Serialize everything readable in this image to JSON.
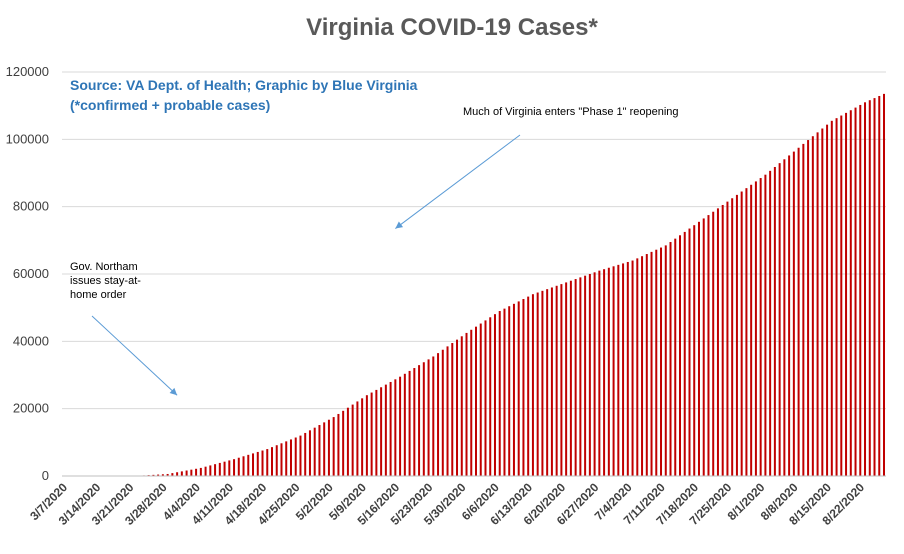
{
  "chart_data": {
    "type": "bar",
    "title": "Virginia COVID-19 Cases*",
    "source_lines": [
      "Source: VA Dept. of Health; Graphic by Blue Virginia",
      "(*confirmed + probable cases)"
    ],
    "ylim": [
      0,
      120000
    ],
    "y_ticks": [
      0,
      20000,
      40000,
      60000,
      80000,
      100000,
      120000
    ],
    "grid": true,
    "bar_color": "#c00000",
    "x_tick_labels": [
      "3/7/2020",
      "3/14/2020",
      "3/21/2020",
      "3/28/2020",
      "4/4/2020",
      "4/11/2020",
      "4/18/2020",
      "4/25/2020",
      "5/2/2020",
      "5/9/2020",
      "5/16/2020",
      "5/23/2020",
      "5/30/2020",
      "6/6/2020",
      "6/13/2020",
      "6/20/2020",
      "6/27/2020",
      "7/4/2020",
      "7/11/2020",
      "7/18/2020",
      "7/25/2020",
      "8/1/2020",
      "8/8/2020",
      "8/15/2020",
      "8/22/2020"
    ],
    "weekly_points": [
      {
        "date": "3/7/2020",
        "value": 0
      },
      {
        "date": "3/14/2020",
        "value": 0
      },
      {
        "date": "3/21/2020",
        "value": 0
      },
      {
        "date": "3/28/2020",
        "value": 600
      },
      {
        "date": "4/4/2020",
        "value": 2400
      },
      {
        "date": "4/11/2020",
        "value": 5000
      },
      {
        "date": "4/18/2020",
        "value": 8000
      },
      {
        "date": "4/25/2020",
        "value": 12000
      },
      {
        "date": "5/2/2020",
        "value": 17500
      },
      {
        "date": "5/9/2020",
        "value": 24000
      },
      {
        "date": "5/16/2020",
        "value": 29500
      },
      {
        "date": "5/23/2020",
        "value": 35500
      },
      {
        "date": "5/30/2020",
        "value": 42500
      },
      {
        "date": "6/6/2020",
        "value": 49000
      },
      {
        "date": "6/13/2020",
        "value": 54000
      },
      {
        "date": "6/20/2020",
        "value": 57500
      },
      {
        "date": "6/27/2020",
        "value": 61000
      },
      {
        "date": "7/4/2020",
        "value": 64000
      },
      {
        "date": "7/11/2020",
        "value": 68500
      },
      {
        "date": "7/18/2020",
        "value": 75500
      },
      {
        "date": "7/25/2020",
        "value": 82500
      },
      {
        "date": "8/1/2020",
        "value": 89500
      },
      {
        "date": "8/8/2020",
        "value": 97500
      },
      {
        "date": "8/15/2020",
        "value": 105500
      },
      {
        "date": "8/22/2020",
        "value": 111000
      },
      {
        "date": "8/26/2020",
        "value": 113500
      }
    ],
    "annotations": [
      {
        "id": "stay-at-home",
        "lines": [
          "Gov. Northam",
          "issues stay-at-",
          "home order"
        ],
        "date": "3/30/2020",
        "arrow_to_value": 24000
      },
      {
        "id": "phase-1",
        "lines": [
          "Much of Virginia enters \"Phase 1\" reopening"
        ],
        "date": "5/15/2020",
        "arrow_to_value": 73500
      }
    ]
  }
}
